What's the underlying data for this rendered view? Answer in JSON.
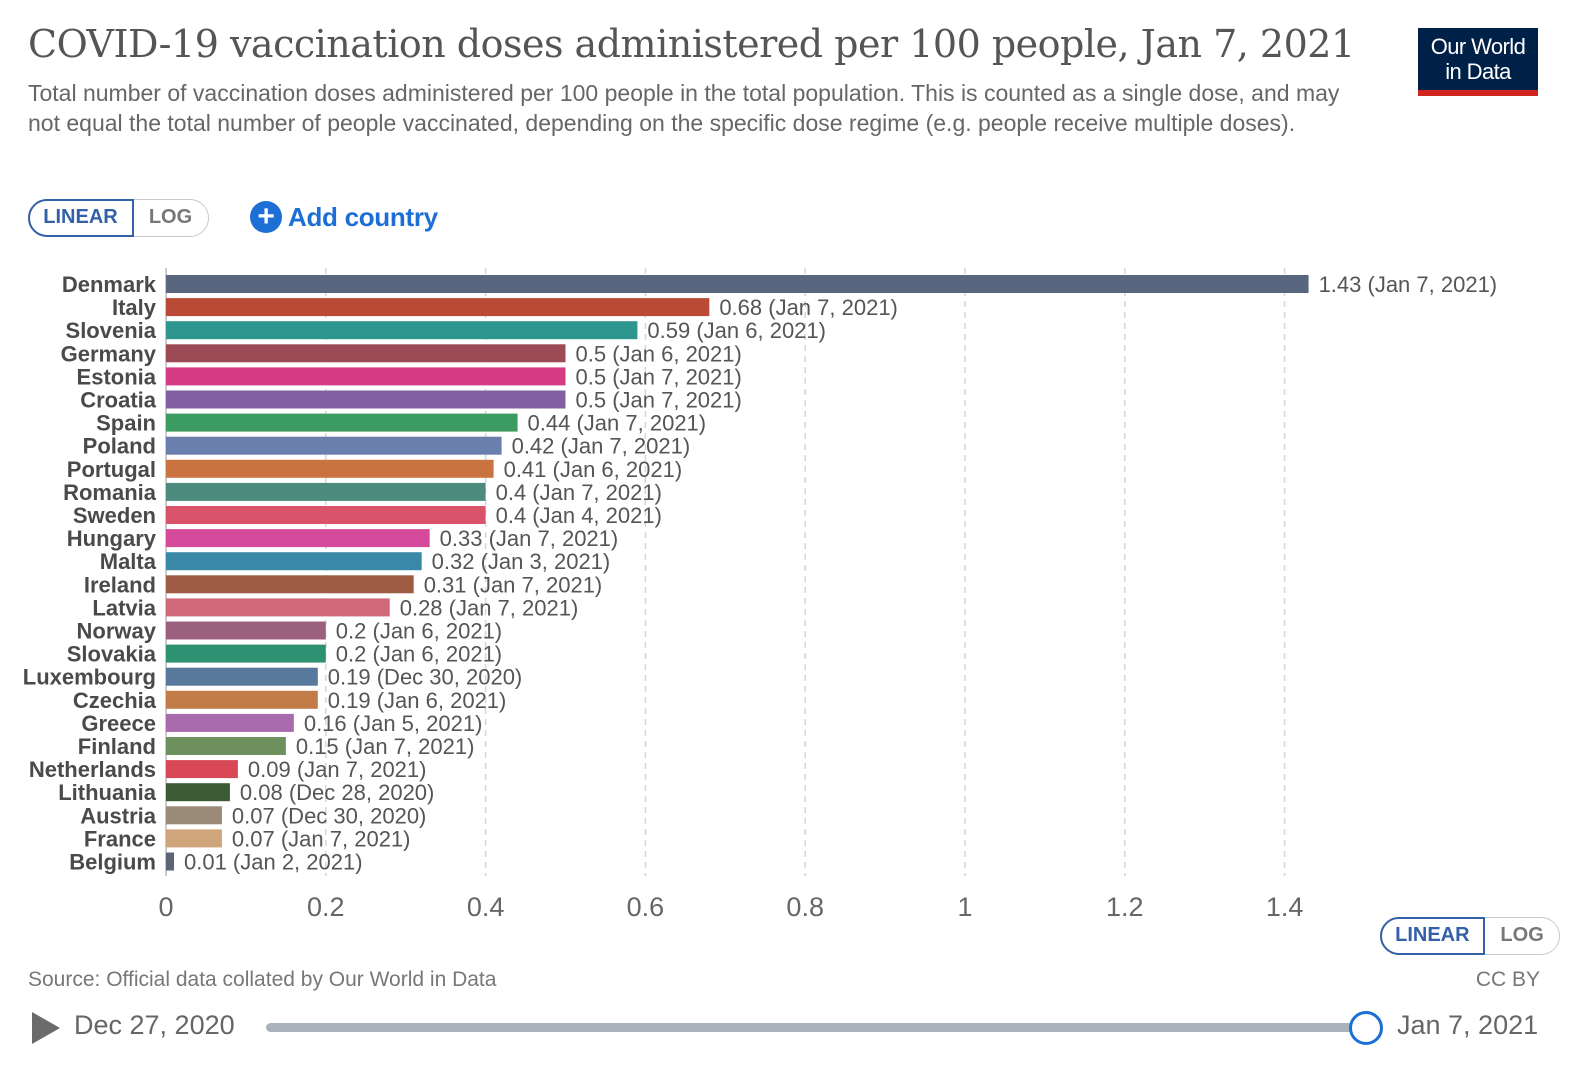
{
  "header": {
    "title": "COVID-19 vaccination doses administered per 100 people, Jan 7, 2021",
    "subtitle": "Total number of vaccination doses administered per 100 people in the total population. This is counted as a single dose, and may not equal the total number of people vaccinated, depending on the specific dose regime (e.g. people receive multiple doses).",
    "logo_line1": "Our World",
    "logo_line2": "in Data"
  },
  "controls": {
    "linear_label": "LINEAR",
    "log_label": "LOG",
    "add_country_icon": "plus-circle-icon",
    "add_country_label": "Add country"
  },
  "chart_data": {
    "type": "bar",
    "orientation": "horizontal",
    "title": "COVID-19 vaccination doses administered per 100 people, Jan 7, 2021",
    "xlim": [
      0,
      1.5
    ],
    "ticks": [
      0,
      0.2,
      0.4,
      0.6,
      0.8,
      1,
      1.2,
      1.4
    ],
    "grid": true,
    "bars": [
      {
        "country": "Denmark",
        "value": 1.43,
        "label": "1.43 (Jan 7, 2021)",
        "color": "#58677f"
      },
      {
        "country": "Italy",
        "value": 0.68,
        "label": "0.68 (Jan 7, 2021)",
        "color": "#b94a35"
      },
      {
        "country": "Slovenia",
        "value": 0.59,
        "label": "0.59 (Jan 6, 2021)",
        "color": "#2f968f"
      },
      {
        "country": "Germany",
        "value": 0.5,
        "label": "0.5 (Jan 6, 2021)",
        "color": "#9c4a56"
      },
      {
        "country": "Estonia",
        "value": 0.5,
        "label": "0.5 (Jan 7, 2021)",
        "color": "#d63b86"
      },
      {
        "country": "Croatia",
        "value": 0.5,
        "label": "0.5 (Jan 7, 2021)",
        "color": "#825ea3"
      },
      {
        "country": "Spain",
        "value": 0.44,
        "label": "0.44 (Jan 7, 2021)",
        "color": "#3b9b61"
      },
      {
        "country": "Poland",
        "value": 0.42,
        "label": "0.42 (Jan 7, 2021)",
        "color": "#6a7fae"
      },
      {
        "country": "Portugal",
        "value": 0.41,
        "label": "0.41 (Jan 6, 2021)",
        "color": "#c87340"
      },
      {
        "country": "Romania",
        "value": 0.4,
        "label": "0.4 (Jan 7, 2021)",
        "color": "#4d8b7e"
      },
      {
        "country": "Sweden",
        "value": 0.4,
        "label": "0.4 (Jan 4, 2021)",
        "color": "#d9546a"
      },
      {
        "country": "Hungary",
        "value": 0.33,
        "label": "0.33 (Jan 7, 2021)",
        "color": "#d64a9b"
      },
      {
        "country": "Malta",
        "value": 0.32,
        "label": "0.32 (Jan 3, 2021)",
        "color": "#3a88a8"
      },
      {
        "country": "Ireland",
        "value": 0.31,
        "label": "0.31 (Jan 7, 2021)",
        "color": "#9e5c45"
      },
      {
        "country": "Latvia",
        "value": 0.28,
        "label": "0.28 (Jan 7, 2021)",
        "color": "#d0687a"
      },
      {
        "country": "Norway",
        "value": 0.2,
        "label": "0.2 (Jan 6, 2021)",
        "color": "#9b5f80"
      },
      {
        "country": "Slovakia",
        "value": 0.2,
        "label": "0.2 (Jan 6, 2021)",
        "color": "#2e9272"
      },
      {
        "country": "Luxembourg",
        "value": 0.19,
        "label": "0.19 (Dec 30, 2020)",
        "color": "#58799b"
      },
      {
        "country": "Czechia",
        "value": 0.19,
        "label": "0.19 (Jan 6, 2021)",
        "color": "#c27c48"
      },
      {
        "country": "Greece",
        "value": 0.16,
        "label": "0.16 (Jan 5, 2021)",
        "color": "#a96aae"
      },
      {
        "country": "Finland",
        "value": 0.15,
        "label": "0.15 (Jan 7, 2021)",
        "color": "#6e905f"
      },
      {
        "country": "Netherlands",
        "value": 0.09,
        "label": "0.09 (Jan 7, 2021)",
        "color": "#d84756"
      },
      {
        "country": "Lithuania",
        "value": 0.08,
        "label": "0.08 (Dec 28, 2020)",
        "color": "#3c5a34"
      },
      {
        "country": "Austria",
        "value": 0.07,
        "label": "0.07 (Dec 30, 2020)",
        "color": "#9a8a78"
      },
      {
        "country": "France",
        "value": 0.07,
        "label": "0.07 (Jan 7, 2021)",
        "color": "#cfa57c"
      },
      {
        "country": "Belgium",
        "value": 0.01,
        "label": "0.01 (Jan 2, 2021)",
        "color": "#5e6478"
      }
    ]
  },
  "footer": {
    "source": "Source: Official data collated by Our World in Data",
    "license": "CC BY"
  },
  "timeline": {
    "play_icon": "play-icon",
    "start_date": "Dec 27, 2020",
    "end_date": "Jan 7, 2021"
  }
}
